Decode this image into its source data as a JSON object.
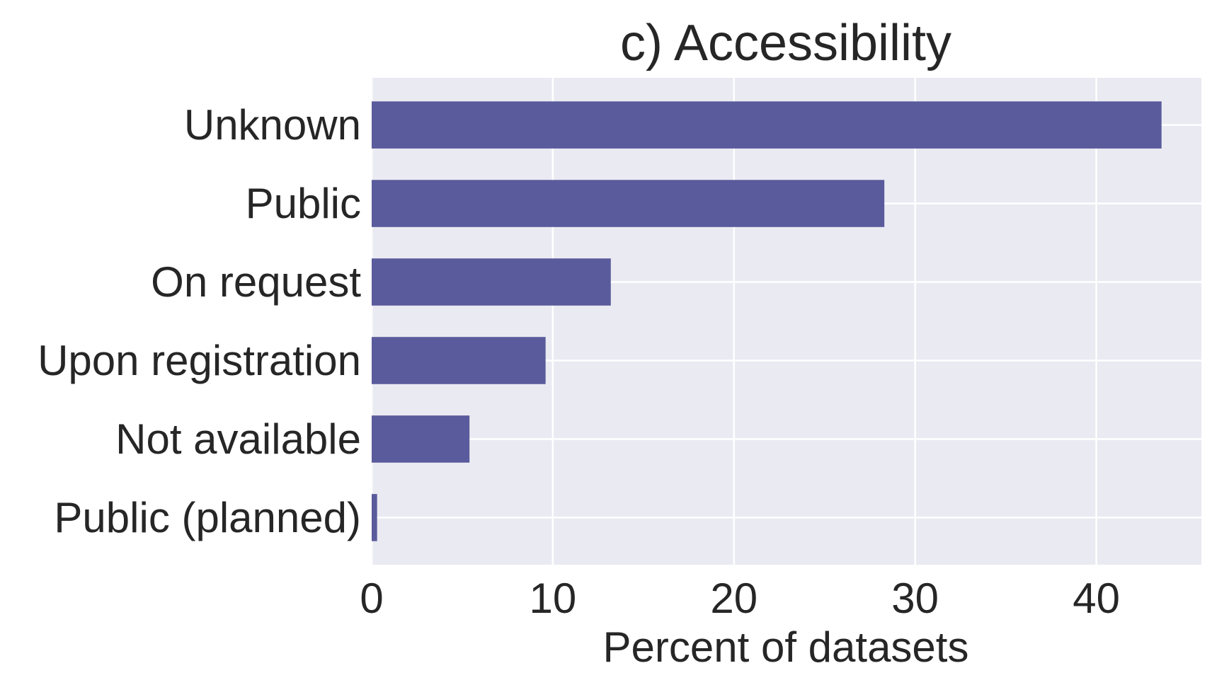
{
  "chart_data": {
    "type": "bar",
    "orientation": "horizontal",
    "title": "c) Accessibility",
    "xlabel": "Percent of datasets",
    "ylabel": "",
    "categories": [
      "Unknown",
      "Public",
      "On request",
      "Upon registration",
      "Not available",
      "Public (planned)"
    ],
    "values": [
      43.6,
      28.3,
      13.2,
      9.6,
      5.4,
      0.3
    ],
    "xlim": [
      0,
      45.8
    ],
    "xticks": [
      "0",
      "10",
      "20",
      "30",
      "40"
    ],
    "grid": true,
    "colors": {
      "bar": "#5a5b9c",
      "plot_background": "#eaeaf2",
      "grid": "#ffffff",
      "text": "#262626"
    }
  }
}
